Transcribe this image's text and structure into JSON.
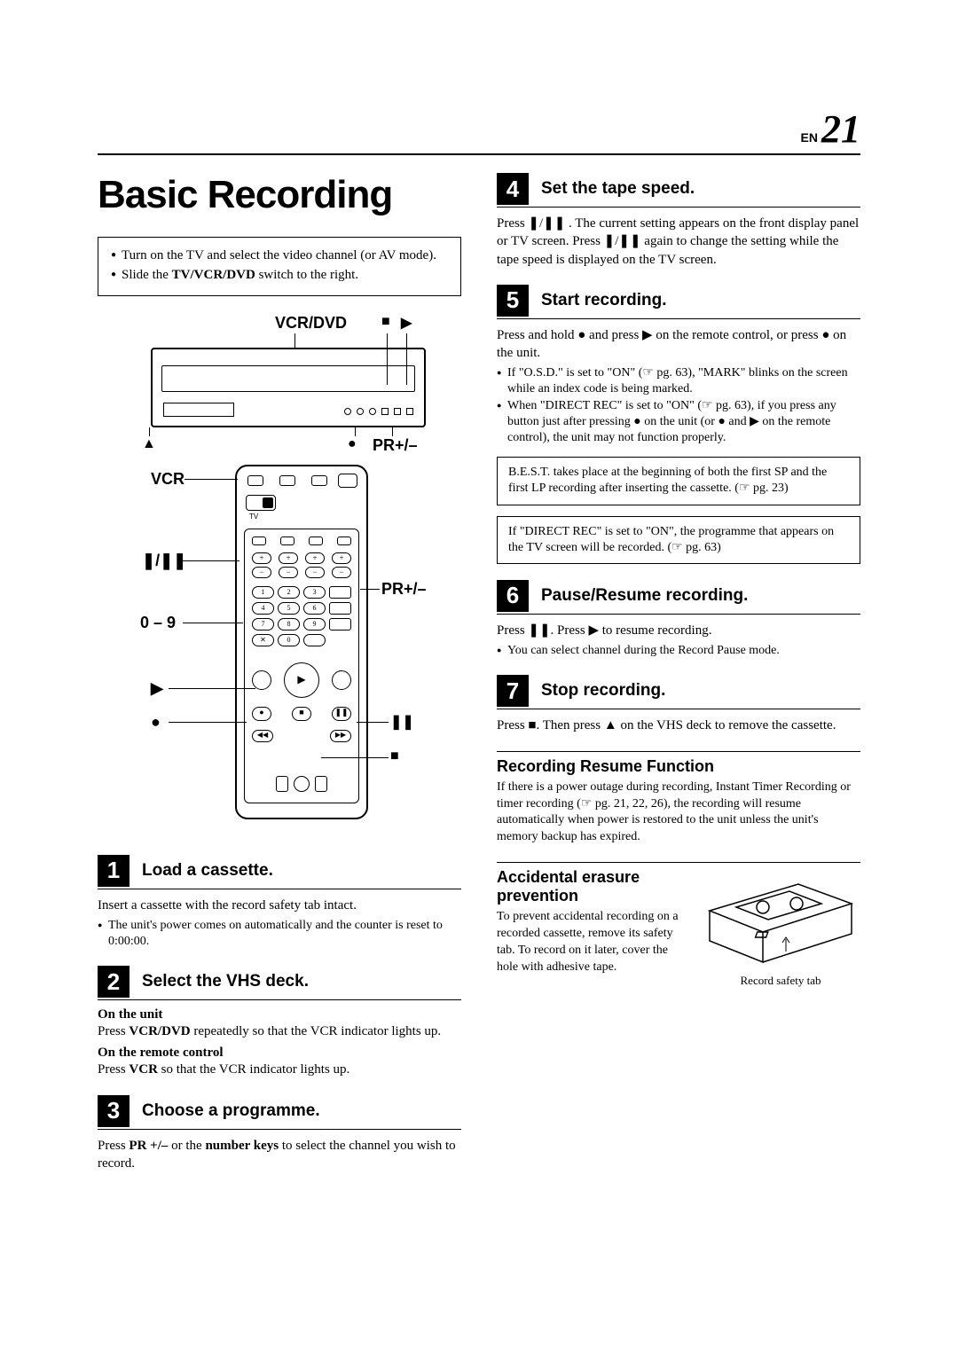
{
  "page": {
    "lang": "EN",
    "number": "21"
  },
  "title": "Basic Recording",
  "intro": [
    "Turn on the TV and select the video channel (or AV mode).",
    "Slide the <b>TV/VCR/DVD</b> switch to the right."
  ],
  "diagram_labels": {
    "top": "VCR/DVD",
    "stop": "■",
    "play_top": "▶",
    "eject": "▲",
    "rec_dot": "●",
    "pr": "PR+/–",
    "vcr": "VCR",
    "tape_speed": "❚/❚❚",
    "pr2": "PR+/–",
    "numbers": "0 – 9",
    "play": "▶",
    "rec": "●",
    "pause": "❚❚",
    "stop2": "■"
  },
  "steps": [
    {
      "n": "1",
      "title": "Load a cassette.",
      "body": "Insert a cassette with the record safety tab intact.",
      "bullets": [
        "The unit's power comes on automatically and the counter is reset to 0:00:00."
      ]
    },
    {
      "n": "2",
      "title": "Select the VHS deck.",
      "sections": [
        {
          "head": "On the unit",
          "body": "Press <b>VCR/DVD</b> repeatedly so that the VCR indicator lights up."
        },
        {
          "head": "On the remote control",
          "body": "Press <b>VCR</b> so that the VCR indicator lights up."
        }
      ]
    },
    {
      "n": "3",
      "title": "Choose a programme.",
      "body": "Press <b>PR +/–</b> or the <b>number keys</b> to select the channel you wish to record."
    },
    {
      "n": "4",
      "title": "Set the tape speed.",
      "body": "Press ❚/❚❚ . The current setting appears on the front display panel or TV screen. Press ❚/❚❚ again to change the setting while the tape speed is displayed on the TV screen."
    },
    {
      "n": "5",
      "title": "Start recording.",
      "body": "Press and hold ● and press ▶ on the remote control, or press ● on the unit.",
      "bullets": [
        "If \"O.S.D.\" is set to \"ON\" (☞ pg. 63), \"MARK\" blinks on the screen while an index code is being marked.",
        "When \"DIRECT REC\" is set to \"ON\" (☞ pg. 63), if you press any button just after pressing ● on the unit (or ● and ▶ on the remote control), the unit may not function properly."
      ],
      "notes": [
        "B.E.S.T. takes place at the beginning of both the first SP and the first LP recording after inserting the cassette. (☞ pg. 23)",
        "If \"DIRECT REC\" is set to \"ON\", the programme that appears on the TV screen will be recorded. (☞ pg. 63)"
      ]
    },
    {
      "n": "6",
      "title": "Pause/Resume recording.",
      "body": "Press ❚❚. Press ▶ to resume recording.",
      "bullets": [
        "You can select channel during the Record Pause mode."
      ]
    },
    {
      "n": "7",
      "title": "Stop recording.",
      "body": "Press ■. Then press ▲ on the VHS deck to remove the cassette."
    }
  ],
  "resume": {
    "title": "Recording Resume Function",
    "body": "If there is a power outage during recording, Instant Timer Recording or timer recording (☞ pg. 21, 22, 26), the recording will resume automatically when power is restored to the unit unless the unit's memory backup has expired."
  },
  "erasure": {
    "title": "Accidental erasure prevention",
    "body": "To prevent accidental recording on a recorded cassette, remove its safety tab. To record on it later, cover the hole with adhesive tape.",
    "caption": "Record safety tab"
  }
}
